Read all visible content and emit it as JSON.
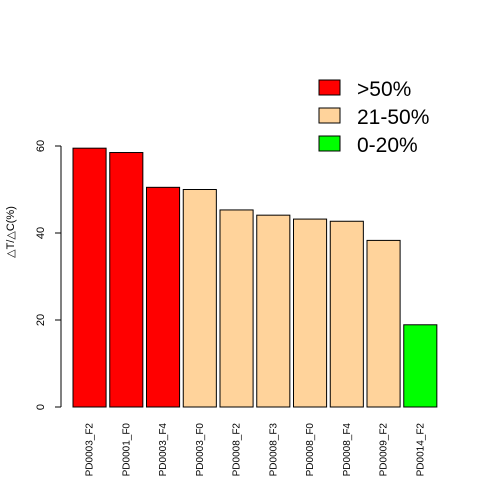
{
  "chart_data": {
    "type": "bar",
    "title": "",
    "xlabel": "",
    "ylabel": "△T/△C(%)",
    "ylim": [
      0,
      60
    ],
    "yticks": [
      0,
      20,
      40,
      60
    ],
    "categories": [
      "PD0003_F2",
      "PD0001_F0",
      "PD0003_F4",
      "PD0003_F0",
      "PD0008_F2",
      "PD0008_F3",
      "PD0008_F0",
      "PD0008_F4",
      "PD0009_F2",
      "PD0014_F2"
    ],
    "values": [
      59.5,
      58.5,
      50.5,
      50.0,
      45.3,
      44.1,
      43.2,
      42.7,
      38.3,
      18.9
    ],
    "bar_groups": [
      ">50%",
      ">50%",
      ">50%",
      "21-50%",
      "21-50%",
      "21-50%",
      "21-50%",
      "21-50%",
      "21-50%",
      "0-20%"
    ],
    "legend": {
      "placement": "top-right",
      "entries": [
        {
          "label": ">50%",
          "color": "#ff0000"
        },
        {
          "label": "21-50%",
          "color": "#ffd39b"
        },
        {
          "label": "0-20%",
          "color": "#00ff00"
        }
      ]
    },
    "grid": false
  }
}
